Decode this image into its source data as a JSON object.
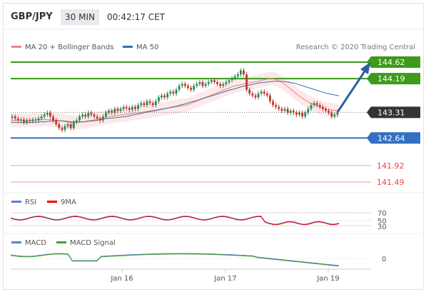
{
  "header": {
    "symbol": "GBP/JPY",
    "timeframe": "30 MIN",
    "time": "00:42:17 CET"
  },
  "legend_main": {
    "ma20": "MA 20 + Bollinger Bands",
    "ma50": "MA 50",
    "credit": "Research © 2020 Trading Central"
  },
  "legend_rsi": {
    "rsi": "RSI",
    "ma9": "9MA"
  },
  "legend_macd": {
    "macd": "MACD",
    "signal": "MACD Signal"
  },
  "colors": {
    "resistance": "#3d9a1a",
    "support": "#3370c4",
    "red_level": "#e44",
    "ma20": "#f08080",
    "ma50": "#3a6ea5",
    "bands": "#fde3e3",
    "current": "#333333",
    "arrow": "#2f5f9e",
    "candle_up": "#2e8b57",
    "candle_down": "#c0392b"
  },
  "chart_data": [
    {
      "type": "candlestick",
      "ylim": [
        141.2,
        144.9
      ],
      "levels": [
        {
          "price": 144.62,
          "label": "144.62",
          "kind": "resistance"
        },
        {
          "price": 144.19,
          "label": "144.19",
          "kind": "resistance"
        },
        {
          "price": 143.31,
          "label": "143.31",
          "kind": "current"
        },
        {
          "price": 142.64,
          "label": "142.64",
          "kind": "support"
        },
        {
          "price": 141.92,
          "label": "141.92",
          "kind": "red"
        },
        {
          "price": 141.49,
          "label": "141.49",
          "kind": "red"
        }
      ],
      "x_ticks": [
        "Jan 16",
        "Jan 17",
        "Jan 19"
      ],
      "close": [
        143.2,
        143.15,
        143.1,
        143.12,
        143.05,
        143.1,
        143.08,
        143.12,
        143.1,
        143.15,
        143.2,
        143.25,
        143.3,
        143.2,
        143.1,
        143.0,
        142.9,
        142.85,
        142.95,
        143.0,
        142.9,
        143.05,
        143.1,
        143.2,
        143.25,
        143.2,
        143.3,
        143.25,
        143.2,
        143.15,
        143.1,
        143.2,
        143.3,
        143.35,
        143.3,
        143.4,
        143.35,
        143.4,
        143.45,
        143.42,
        143.38,
        143.45,
        143.4,
        143.5,
        143.55,
        143.5,
        143.6,
        143.55,
        143.5,
        143.6,
        143.7,
        143.75,
        143.7,
        143.8,
        143.85,
        143.8,
        143.9,
        144.0,
        144.05,
        144.0,
        143.95,
        143.9,
        144.0,
        144.05,
        144.1,
        144.0,
        144.05,
        144.1,
        144.15,
        144.1,
        144.05,
        144.0,
        144.05,
        144.1,
        144.15,
        144.2,
        144.25,
        144.3,
        144.4,
        144.3,
        143.9,
        143.8,
        143.75,
        143.7,
        143.8,
        143.85,
        143.8,
        143.75,
        143.6,
        143.5,
        143.45,
        143.4,
        143.35,
        143.4,
        143.3,
        143.35,
        143.3,
        143.25,
        143.3,
        143.2,
        143.3,
        143.4,
        143.5,
        143.55,
        143.5,
        143.45,
        143.4,
        143.35,
        143.3,
        143.2,
        143.25,
        143.3
      ],
      "ma50": [
        143.05,
        143.05,
        143.04,
        143.04,
        143.04,
        143.04,
        143.05,
        143.05,
        143.06,
        143.06,
        143.07,
        143.08,
        143.09,
        143.09,
        143.09,
        143.08,
        143.07,
        143.06,
        143.06,
        143.06,
        143.06,
        143.07,
        143.08,
        143.09,
        143.1,
        143.12,
        143.14,
        143.15,
        143.16,
        143.17,
        143.18,
        143.19,
        143.2,
        143.22,
        143.24,
        143.26,
        143.28,
        143.3,
        143.32,
        143.34,
        143.35,
        143.37,
        143.39,
        143.41,
        143.43,
        143.45,
        143.47,
        143.5,
        143.52,
        143.55,
        143.58,
        143.6,
        143.63,
        143.66,
        143.69,
        143.72,
        143.75,
        143.78,
        143.81,
        143.84,
        143.87,
        143.9,
        143.92,
        143.95,
        143.98,
        144.0,
        144.02,
        144.04,
        144.06,
        144.08,
        144.09,
        144.1,
        144.11,
        144.12,
        144.12,
        144.12,
        144.11,
        144.1,
        144.08,
        144.06,
        144.03,
        144.0,
        143.97,
        143.94,
        143.91,
        143.88,
        143.85,
        143.82,
        143.8,
        143.78,
        143.76,
        143.74
      ],
      "ma20": [
        143.1,
        143.1,
        143.1,
        143.1,
        143.1,
        143.11,
        143.12,
        143.12,
        143.12,
        143.11,
        143.1,
        143.08,
        143.06,
        143.05,
        143.05,
        143.06,
        143.08,
        143.1,
        143.12,
        143.15,
        143.18,
        143.2,
        143.22,
        143.24,
        143.25,
        143.27,
        143.29,
        143.3,
        143.32,
        143.34,
        143.36,
        143.38,
        143.4,
        143.42,
        143.44,
        143.46,
        143.48,
        143.5,
        143.55,
        143.6,
        143.65,
        143.7,
        143.75,
        143.8,
        143.85,
        143.9,
        143.95,
        144.0,
        144.02,
        144.05,
        144.08,
        144.1,
        144.12,
        144.15,
        144.18,
        144.2,
        144.15,
        144.1,
        144.0,
        143.9,
        143.8,
        143.7,
        143.62,
        143.55,
        143.5,
        143.45,
        143.4,
        143.38,
        143.36,
        143.35
      ],
      "rsi_ticks": [
        "70",
        "50",
        "30"
      ],
      "macd_ticks": [
        "0"
      ]
    }
  ]
}
